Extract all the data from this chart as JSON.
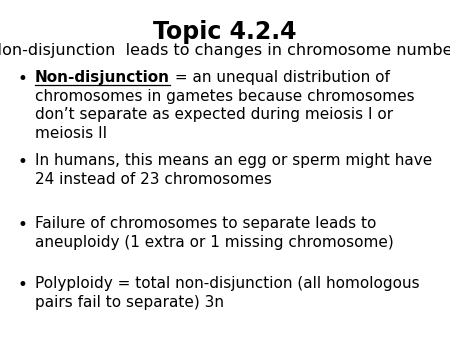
{
  "title": "Topic 4.2.4",
  "subtitle": "Non-disjunction  leads to changes in chromosome number",
  "background_color": "#ffffff",
  "text_color": "#000000",
  "title_fontsize": 17,
  "subtitle_fontsize": 11.5,
  "bullet_fontsize": 11.0,
  "bullet_symbol": "•",
  "bullets": [
    {
      "bold_underline": "Non-disjunction",
      "line1_rest": " = an unequal distribution of",
      "extra_lines": [
        "chromosomes in gametes because chromosomes",
        "don’t separate as expected during meiosis I or",
        "meiosis II"
      ]
    },
    {
      "bold_underline": "",
      "line1_rest": "In humans, this means an egg or sperm might have",
      "extra_lines": [
        "24 instead of 23 chromosomes"
      ]
    },
    {
      "bold_underline": "",
      "line1_rest": "Failure of chromosomes to separate leads to",
      "extra_lines": [
        "aneuploidy (1 extra or 1 missing chromosome)"
      ]
    },
    {
      "bold_underline": "",
      "line1_rest": "Polyploidy = total non-disjunction (all homologous",
      "extra_lines": [
        "pairs fail to separate) 3n"
      ]
    }
  ]
}
